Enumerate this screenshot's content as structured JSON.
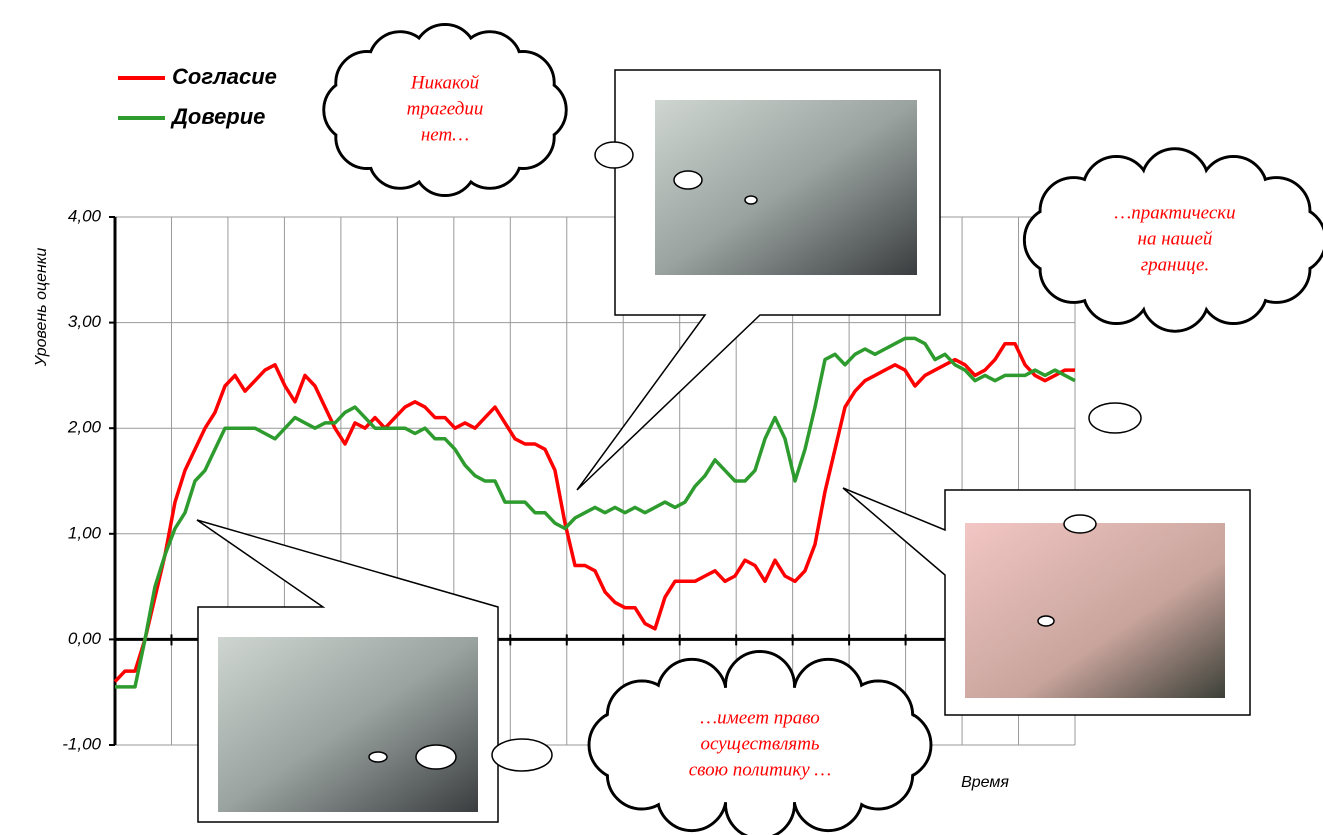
{
  "chart_data": {
    "type": "line",
    "y_label": "Уровень оценки",
    "x_label": "Время",
    "ylim": [
      -1,
      4
    ],
    "yticks": [
      {
        "value": -1,
        "label": "-1,00"
      },
      {
        "value": 0,
        "label": "0,00"
      },
      {
        "value": 1,
        "label": "1,00"
      },
      {
        "value": 2,
        "label": "2,00"
      },
      {
        "value": 3,
        "label": "3,00"
      },
      {
        "value": 4,
        "label": "4,00"
      }
    ],
    "grid": true,
    "legend": "top-left",
    "series": [
      {
        "name": "Согласие",
        "color": "#ff0000",
        "values": [
          -0.4,
          -0.3,
          -0.3,
          0.0,
          0.4,
          0.8,
          1.3,
          1.6,
          1.8,
          2.0,
          2.15,
          2.4,
          2.5,
          2.35,
          2.45,
          2.55,
          2.6,
          2.4,
          2.25,
          2.5,
          2.4,
          2.2,
          2.0,
          1.85,
          2.05,
          2.0,
          2.1,
          2.0,
          2.1,
          2.2,
          2.25,
          2.2,
          2.1,
          2.1,
          2.0,
          2.05,
          2.0,
          2.1,
          2.2,
          2.05,
          1.9,
          1.85,
          1.85,
          1.8,
          1.6,
          1.1,
          0.7,
          0.7,
          0.65,
          0.45,
          0.35,
          0.3,
          0.3,
          0.15,
          0.1,
          0.4,
          0.55,
          0.55,
          0.55,
          0.6,
          0.65,
          0.55,
          0.6,
          0.75,
          0.7,
          0.55,
          0.75,
          0.6,
          0.55,
          0.65,
          0.9,
          1.4,
          1.8,
          2.2,
          2.35,
          2.45,
          2.5,
          2.55,
          2.6,
          2.55,
          2.4,
          2.5,
          2.55,
          2.6,
          2.65,
          2.6,
          2.5,
          2.55,
          2.65,
          2.8,
          2.8,
          2.6,
          2.5,
          2.45,
          2.5,
          2.55,
          2.55
        ]
      },
      {
        "name": "Доверие",
        "color": "#2e9b2e",
        "values": [
          -0.45,
          -0.45,
          -0.45,
          0.0,
          0.5,
          0.8,
          1.05,
          1.2,
          1.5,
          1.6,
          1.8,
          2.0,
          2.0,
          2.0,
          2.0,
          1.95,
          1.9,
          2.0,
          2.1,
          2.05,
          2.0,
          2.05,
          2.05,
          2.15,
          2.2,
          2.1,
          2.0,
          2.0,
          2.0,
          2.0,
          1.95,
          2.0,
          1.9,
          1.9,
          1.8,
          1.65,
          1.55,
          1.5,
          1.5,
          1.3,
          1.3,
          1.3,
          1.2,
          1.2,
          1.1,
          1.05,
          1.15,
          1.2,
          1.25,
          1.2,
          1.25,
          1.2,
          1.25,
          1.2,
          1.25,
          1.3,
          1.25,
          1.3,
          1.45,
          1.55,
          1.7,
          1.6,
          1.5,
          1.5,
          1.6,
          1.9,
          2.1,
          1.9,
          1.5,
          1.8,
          2.2,
          2.65,
          2.7,
          2.6,
          2.7,
          2.75,
          2.7,
          2.75,
          2.8,
          2.85,
          2.85,
          2.8,
          2.65,
          2.7,
          2.6,
          2.55,
          2.45,
          2.5,
          2.45,
          2.5,
          2.5,
          2.5,
          2.55,
          2.5,
          2.55,
          2.5,
          2.45
        ]
      }
    ],
    "annotations": [
      [
        "Никакой",
        "трагедии",
        "нет…"
      ],
      [
        "…практически",
        "на нашей",
        "границе."
      ],
      [
        "…имеет право",
        "осуществлять",
        "свою политику …"
      ]
    ]
  }
}
